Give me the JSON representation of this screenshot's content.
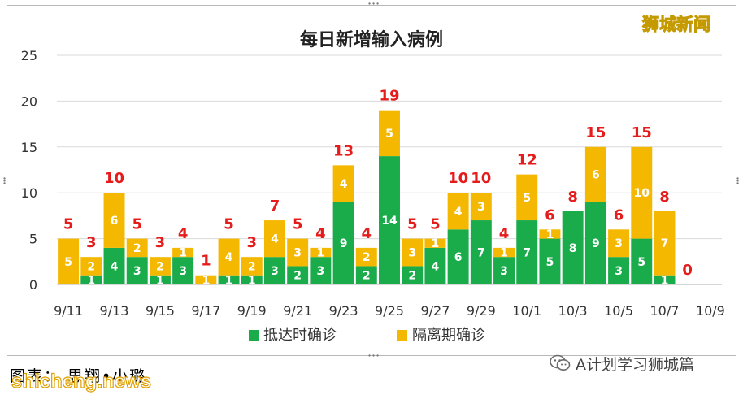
{
  "brand": "狮城新闻",
  "credit": "图表：  思翔•小璐",
  "watermark": "shicheng.news",
  "wechat": {
    "icon": "wechat-icon",
    "label": "A计划学习狮城篇"
  },
  "colors": {
    "arrival": "#1aab4b",
    "quarantine": "#f5b800",
    "total_label": "#e51c1c",
    "grid": "#d9d9d9",
    "frame": "#b9b9b9"
  },
  "chart_data": {
    "type": "bar",
    "stacked": true,
    "title": "每日新增输入病例",
    "categories": [
      "9/11",
      "9/12",
      "9/13",
      "9/14",
      "9/15",
      "9/16",
      "9/17",
      "9/18",
      "9/19",
      "9/20",
      "9/21",
      "9/22",
      "9/23",
      "9/24",
      "9/25",
      "9/26",
      "9/27",
      "9/28",
      "9/29",
      "9/30",
      "10/1",
      "10/2",
      "10/3",
      "10/4",
      "10/5",
      "10/6",
      "10/7",
      "10/8",
      "10/9"
    ],
    "x_tick_labels": [
      "9/11",
      "9/13",
      "9/15",
      "9/17",
      "9/19",
      "9/21",
      "9/23",
      "9/25",
      "9/27",
      "9/29",
      "10/1",
      "10/3",
      "10/5",
      "10/7",
      "10/9"
    ],
    "series": [
      {
        "name": "抵达时确诊",
        "color": "#1aab4b",
        "values": [
          0,
          1,
          4,
          3,
          1,
          3,
          0,
          1,
          1,
          3,
          2,
          3,
          9,
          2,
          14,
          2,
          4,
          6,
          7,
          3,
          7,
          5,
          8,
          9,
          3,
          5,
          1,
          0,
          0
        ]
      },
      {
        "name": "隔离期确诊",
        "color": "#f5b800",
        "values": [
          5,
          2,
          6,
          2,
          2,
          1,
          1,
          4,
          2,
          4,
          3,
          1,
          4,
          2,
          5,
          3,
          1,
          4,
          3,
          1,
          5,
          1,
          0,
          6,
          3,
          10,
          7,
          0,
          0
        ]
      }
    ],
    "totals": [
      5,
      3,
      10,
      5,
      3,
      4,
      1,
      5,
      3,
      7,
      5,
      4,
      13,
      4,
      19,
      5,
      5,
      10,
      10,
      4,
      12,
      6,
      8,
      15,
      6,
      15,
      8,
      0,
      null
    ],
    "ylim": [
      0,
      25
    ],
    "yticks": [
      0,
      5,
      10,
      15,
      20,
      25
    ],
    "grid": true,
    "legend": "bottom-center",
    "xlabel": "",
    "ylabel": ""
  }
}
